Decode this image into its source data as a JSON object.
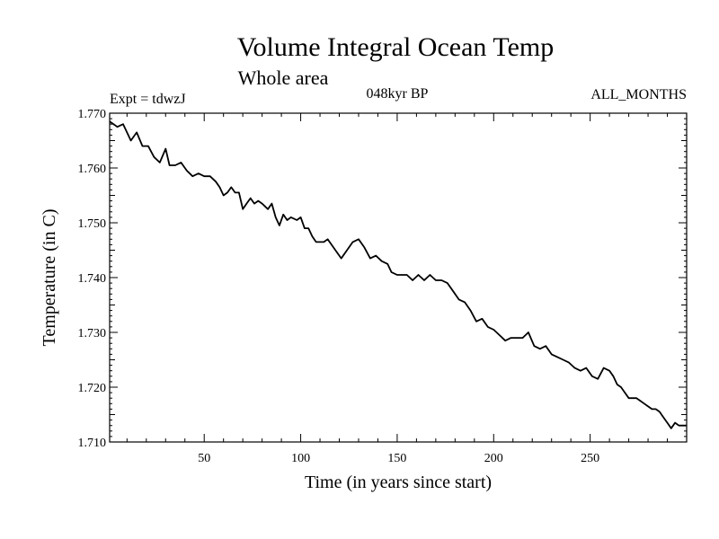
{
  "chart_data": {
    "type": "line",
    "title": "Volume Integral Ocean Temp",
    "subtitle": "Whole area",
    "annotations": {
      "left": "Expt = tdwzJ",
      "center": "048kyr BP",
      "right": "ALL_MONTHS"
    },
    "xlabel": "Time (in years since start)",
    "ylabel": "Temperature (in C)",
    "xlim": [
      1,
      300
    ],
    "ylim": [
      1.71,
      1.77
    ],
    "x_ticks": [
      50,
      100,
      150,
      200,
      250
    ],
    "y_ticks": [
      "1.710",
      "1.720",
      "1.730",
      "1.740",
      "1.750",
      "1.760",
      "1.770"
    ],
    "grid": false,
    "legend": "none",
    "series": [
      {
        "color": "#000000",
        "x": [
          1,
          5,
          8,
          12,
          15,
          18,
          21,
          24,
          27,
          30,
          32,
          35,
          38,
          41,
          44,
          47,
          50,
          53,
          56,
          58,
          60,
          62,
          64,
          66,
          68,
          70,
          72,
          74,
          76,
          78,
          80,
          83,
          85,
          87,
          89,
          91,
          93,
          95,
          98,
          100,
          102,
          104,
          106,
          108,
          110,
          112,
          114,
          116,
          118,
          121,
          124,
          127,
          130,
          133,
          136,
          139,
          142,
          145,
          147,
          150,
          152,
          155,
          158,
          161,
          164,
          167,
          170,
          173,
          176,
          179,
          182,
          185,
          188,
          191,
          194,
          197,
          200,
          203,
          206,
          209,
          212,
          215,
          218,
          221,
          224,
          227,
          230,
          233,
          236,
          239,
          242,
          245,
          248,
          251,
          254,
          257,
          260,
          262,
          264,
          266,
          268,
          270,
          272,
          274,
          276,
          278,
          280,
          282,
          284,
          286,
          288,
          290,
          292,
          294,
          296,
          298,
          300
        ],
        "y": [
          1.7685,
          1.7675,
          1.768,
          1.765,
          1.7665,
          1.764,
          1.764,
          1.762,
          1.761,
          1.7635,
          1.7605,
          1.7605,
          1.761,
          1.7595,
          1.7585,
          1.759,
          1.7585,
          1.7585,
          1.7575,
          1.7565,
          1.755,
          1.7555,
          1.7565,
          1.7555,
          1.7555,
          1.7525,
          1.7535,
          1.7545,
          1.7535,
          1.754,
          1.7535,
          1.7525,
          1.7535,
          1.751,
          1.7495,
          1.7515,
          1.7505,
          1.751,
          1.7505,
          1.751,
          1.749,
          1.749,
          1.7475,
          1.7465,
          1.7465,
          1.7465,
          1.747,
          1.746,
          1.745,
          1.7435,
          1.745,
          1.7465,
          1.747,
          1.7455,
          1.7435,
          1.744,
          1.743,
          1.7425,
          1.741,
          1.7405,
          1.7405,
          1.7405,
          1.7395,
          1.7405,
          1.7395,
          1.7405,
          1.7395,
          1.7395,
          1.739,
          1.7375,
          1.736,
          1.7355,
          1.734,
          1.732,
          1.7325,
          1.731,
          1.7305,
          1.7295,
          1.7285,
          1.729,
          1.729,
          1.729,
          1.73,
          1.7275,
          1.727,
          1.7275,
          1.726,
          1.7255,
          1.725,
          1.7245,
          1.7235,
          1.723,
          1.7235,
          1.722,
          1.7215,
          1.7235,
          1.723,
          1.722,
          1.7205,
          1.72,
          1.719,
          1.718,
          1.718,
          1.718,
          1.7175,
          1.717,
          1.7165,
          1.716,
          1.716,
          1.7155,
          1.7145,
          1.7135,
          1.7125,
          1.7135,
          1.713,
          1.713,
          1.713
        ]
      }
    ]
  }
}
